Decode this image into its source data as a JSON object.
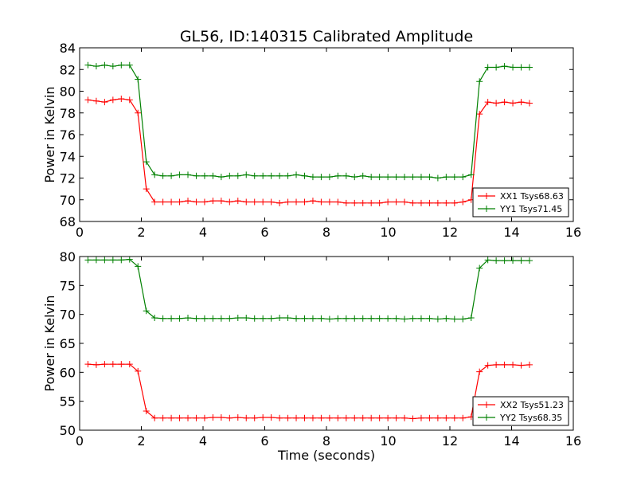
{
  "chart_data": [
    {
      "type": "line",
      "title": "GL56, ID:140315 Calibrated Amplitude",
      "xlabel": "",
      "ylabel": "Power in Kelvin",
      "xlim": [
        0,
        16
      ],
      "ylim": [
        68,
        84
      ],
      "xticks": [
        0,
        2,
        4,
        6,
        8,
        10,
        12,
        14,
        16
      ],
      "yticks": [
        68,
        70,
        72,
        74,
        76,
        78,
        80,
        82,
        84
      ],
      "legend_position": "lower-right",
      "x": [
        0.27,
        0.54,
        0.81,
        1.08,
        1.35,
        1.62,
        1.89,
        2.16,
        2.43,
        2.7,
        2.97,
        3.24,
        3.51,
        3.78,
        4.05,
        4.32,
        4.59,
        4.86,
        5.13,
        5.4,
        5.67,
        5.94,
        6.21,
        6.48,
        6.75,
        7.02,
        7.29,
        7.56,
        7.83,
        8.1,
        8.37,
        8.64,
        8.91,
        9.18,
        9.45,
        9.72,
        9.99,
        10.26,
        10.53,
        10.8,
        11.07,
        11.34,
        11.61,
        11.88,
        12.15,
        12.42,
        12.69,
        12.96,
        13.23,
        13.5,
        13.77,
        14.04,
        14.31,
        14.58
      ],
      "series": [
        {
          "name": "XX1 Tsys68.63",
          "color": "#ff0000",
          "values": [
            79.2,
            79.1,
            79.0,
            79.2,
            79.3,
            79.2,
            78.0,
            71.0,
            69.8,
            69.8,
            69.8,
            69.8,
            69.9,
            69.8,
            69.8,
            69.9,
            69.9,
            69.8,
            69.9,
            69.8,
            69.8,
            69.8,
            69.8,
            69.7,
            69.8,
            69.8,
            69.8,
            69.9,
            69.8,
            69.8,
            69.8,
            69.7,
            69.7,
            69.7,
            69.7,
            69.7,
            69.8,
            69.8,
            69.8,
            69.7,
            69.7,
            69.7,
            69.7,
            69.7,
            69.7,
            69.8,
            70.0,
            77.9,
            79.0,
            78.9,
            79.0,
            78.9,
            79.0,
            78.9
          ]
        },
        {
          "name": "YY1 Tsys71.45",
          "color": "#008000",
          "values": [
            82.4,
            82.3,
            82.4,
            82.3,
            82.4,
            82.4,
            81.1,
            73.5,
            72.3,
            72.2,
            72.2,
            72.3,
            72.3,
            72.2,
            72.2,
            72.2,
            72.1,
            72.2,
            72.2,
            72.3,
            72.2,
            72.2,
            72.2,
            72.2,
            72.2,
            72.3,
            72.2,
            72.1,
            72.1,
            72.1,
            72.2,
            72.2,
            72.1,
            72.2,
            72.1,
            72.1,
            72.1,
            72.1,
            72.1,
            72.1,
            72.1,
            72.1,
            72.0,
            72.1,
            72.1,
            72.1,
            72.3,
            80.9,
            82.2,
            82.2,
            82.3,
            82.2,
            82.2,
            82.2
          ]
        }
      ]
    },
    {
      "type": "line",
      "title": "",
      "xlabel": "Time (seconds)",
      "ylabel": "Power in Kelvin",
      "xlim": [
        0,
        16
      ],
      "ylim": [
        50,
        80
      ],
      "xticks": [
        0,
        2,
        4,
        6,
        8,
        10,
        12,
        14,
        16
      ],
      "yticks": [
        50,
        55,
        60,
        65,
        70,
        75,
        80
      ],
      "legend_position": "lower-right",
      "x": [
        0.27,
        0.54,
        0.81,
        1.08,
        1.35,
        1.62,
        1.89,
        2.16,
        2.43,
        2.7,
        2.97,
        3.24,
        3.51,
        3.78,
        4.05,
        4.32,
        4.59,
        4.86,
        5.13,
        5.4,
        5.67,
        5.94,
        6.21,
        6.48,
        6.75,
        7.02,
        7.29,
        7.56,
        7.83,
        8.1,
        8.37,
        8.64,
        8.91,
        9.18,
        9.45,
        9.72,
        9.99,
        10.26,
        10.53,
        10.8,
        11.07,
        11.34,
        11.61,
        11.88,
        12.15,
        12.42,
        12.69,
        12.96,
        13.23,
        13.5,
        13.77,
        14.04,
        14.31,
        14.58
      ],
      "series": [
        {
          "name": "XX2 Tsys51.23",
          "color": "#ff0000",
          "values": [
            61.4,
            61.3,
            61.4,
            61.4,
            61.4,
            61.4,
            60.2,
            53.3,
            52.1,
            52.1,
            52.1,
            52.1,
            52.1,
            52.1,
            52.1,
            52.2,
            52.2,
            52.1,
            52.2,
            52.1,
            52.1,
            52.2,
            52.2,
            52.1,
            52.1,
            52.1,
            52.1,
            52.1,
            52.1,
            52.1,
            52.1,
            52.1,
            52.1,
            52.1,
            52.1,
            52.1,
            52.1,
            52.1,
            52.1,
            52.0,
            52.1,
            52.1,
            52.1,
            52.1,
            52.1,
            52.1,
            52.3,
            60.1,
            61.2,
            61.3,
            61.3,
            61.3,
            61.2,
            61.3
          ]
        },
        {
          "name": "YY2 Tsys68.35",
          "color": "#008000",
          "values": [
            79.4,
            79.4,
            79.4,
            79.4,
            79.4,
            79.5,
            78.3,
            70.6,
            69.4,
            69.3,
            69.3,
            69.3,
            69.4,
            69.3,
            69.3,
            69.3,
            69.3,
            69.3,
            69.4,
            69.4,
            69.3,
            69.3,
            69.3,
            69.4,
            69.4,
            69.3,
            69.3,
            69.3,
            69.3,
            69.2,
            69.3,
            69.3,
            69.3,
            69.3,
            69.3,
            69.3,
            69.3,
            69.3,
            69.2,
            69.3,
            69.3,
            69.3,
            69.2,
            69.3,
            69.2,
            69.2,
            69.4,
            78.0,
            79.4,
            79.3,
            79.3,
            79.3,
            79.3,
            79.3
          ]
        }
      ]
    }
  ]
}
